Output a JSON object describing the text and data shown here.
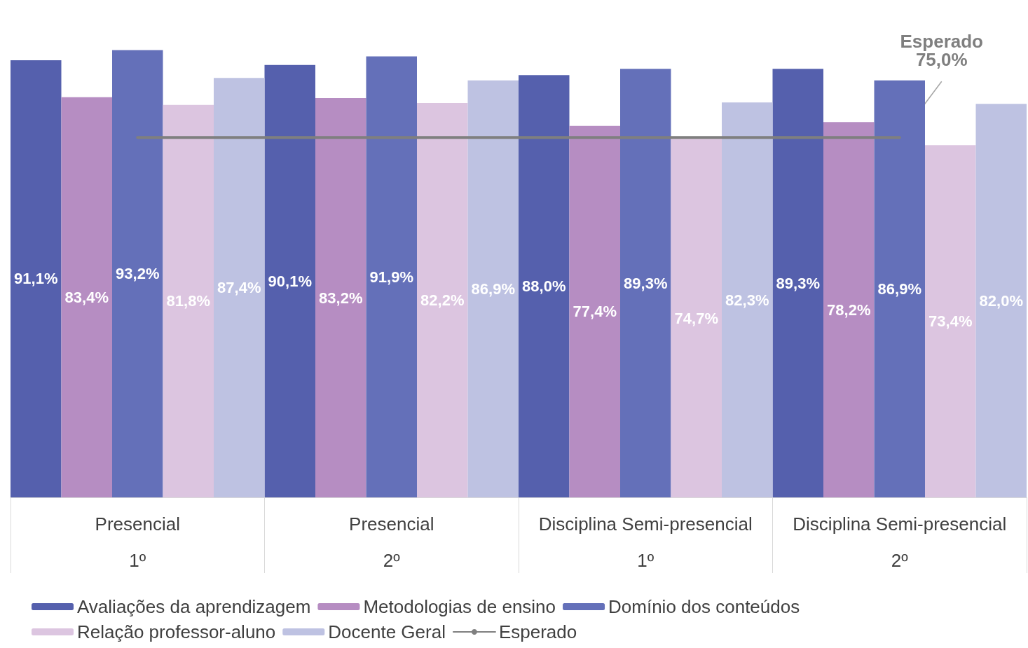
{
  "chart_data": {
    "type": "bar",
    "categories": [
      "Presencial\n1º",
      "Presencial\n2º",
      "Disciplina Semi-presencial\n1º",
      "Disciplina Semi-presencial\n2º"
    ],
    "series": [
      {
        "name": "Avaliações da aprendizagem",
        "color": "#5560ad",
        "values": [
          91.1,
          90.1,
          88.0,
          89.3
        ],
        "value_labels": [
          "91,1%",
          "90,1%",
          "88,0%",
          "89,3%"
        ]
      },
      {
        "name": "Metodologias de ensino",
        "color": "#b68dc2",
        "values": [
          83.4,
          83.2,
          77.4,
          78.2
        ],
        "value_labels": [
          "83,4%",
          "83,2%",
          "77,4%",
          "78,2%"
        ]
      },
      {
        "name": "Domínio dos conteúdos",
        "color": "#6470b9",
        "values": [
          93.2,
          91.9,
          89.3,
          86.9
        ],
        "value_labels": [
          "93,2%",
          "91,9%",
          "89,3%",
          "86,9%"
        ]
      },
      {
        "name": "Relação professor-aluno",
        "color": "#dcc5e0",
        "values": [
          81.8,
          82.2,
          74.7,
          73.4
        ],
        "value_labels": [
          "81,8%",
          "82,2%",
          "74,7%",
          "73,4%"
        ]
      },
      {
        "name": "Docente Geral",
        "color": "#bec2e2",
        "values": [
          87.4,
          86.9,
          82.3,
          82.0
        ],
        "value_labels": [
          "87,4%",
          "86,9%",
          "82,3%",
          "82,0%"
        ]
      },
      {
        "name": "Esperado",
        "type": "line",
        "color": "#7f7f7f",
        "values": [
          75.0,
          75.0,
          75.0,
          75.0
        ]
      }
    ],
    "annotations": [
      {
        "text": "Esperado\n75,0%",
        "x": "Disciplina Semi-presencial\n2º",
        "y": 75.0
      }
    ],
    "legend": "bottom",
    "grid": false,
    "marker": "none"
  }
}
